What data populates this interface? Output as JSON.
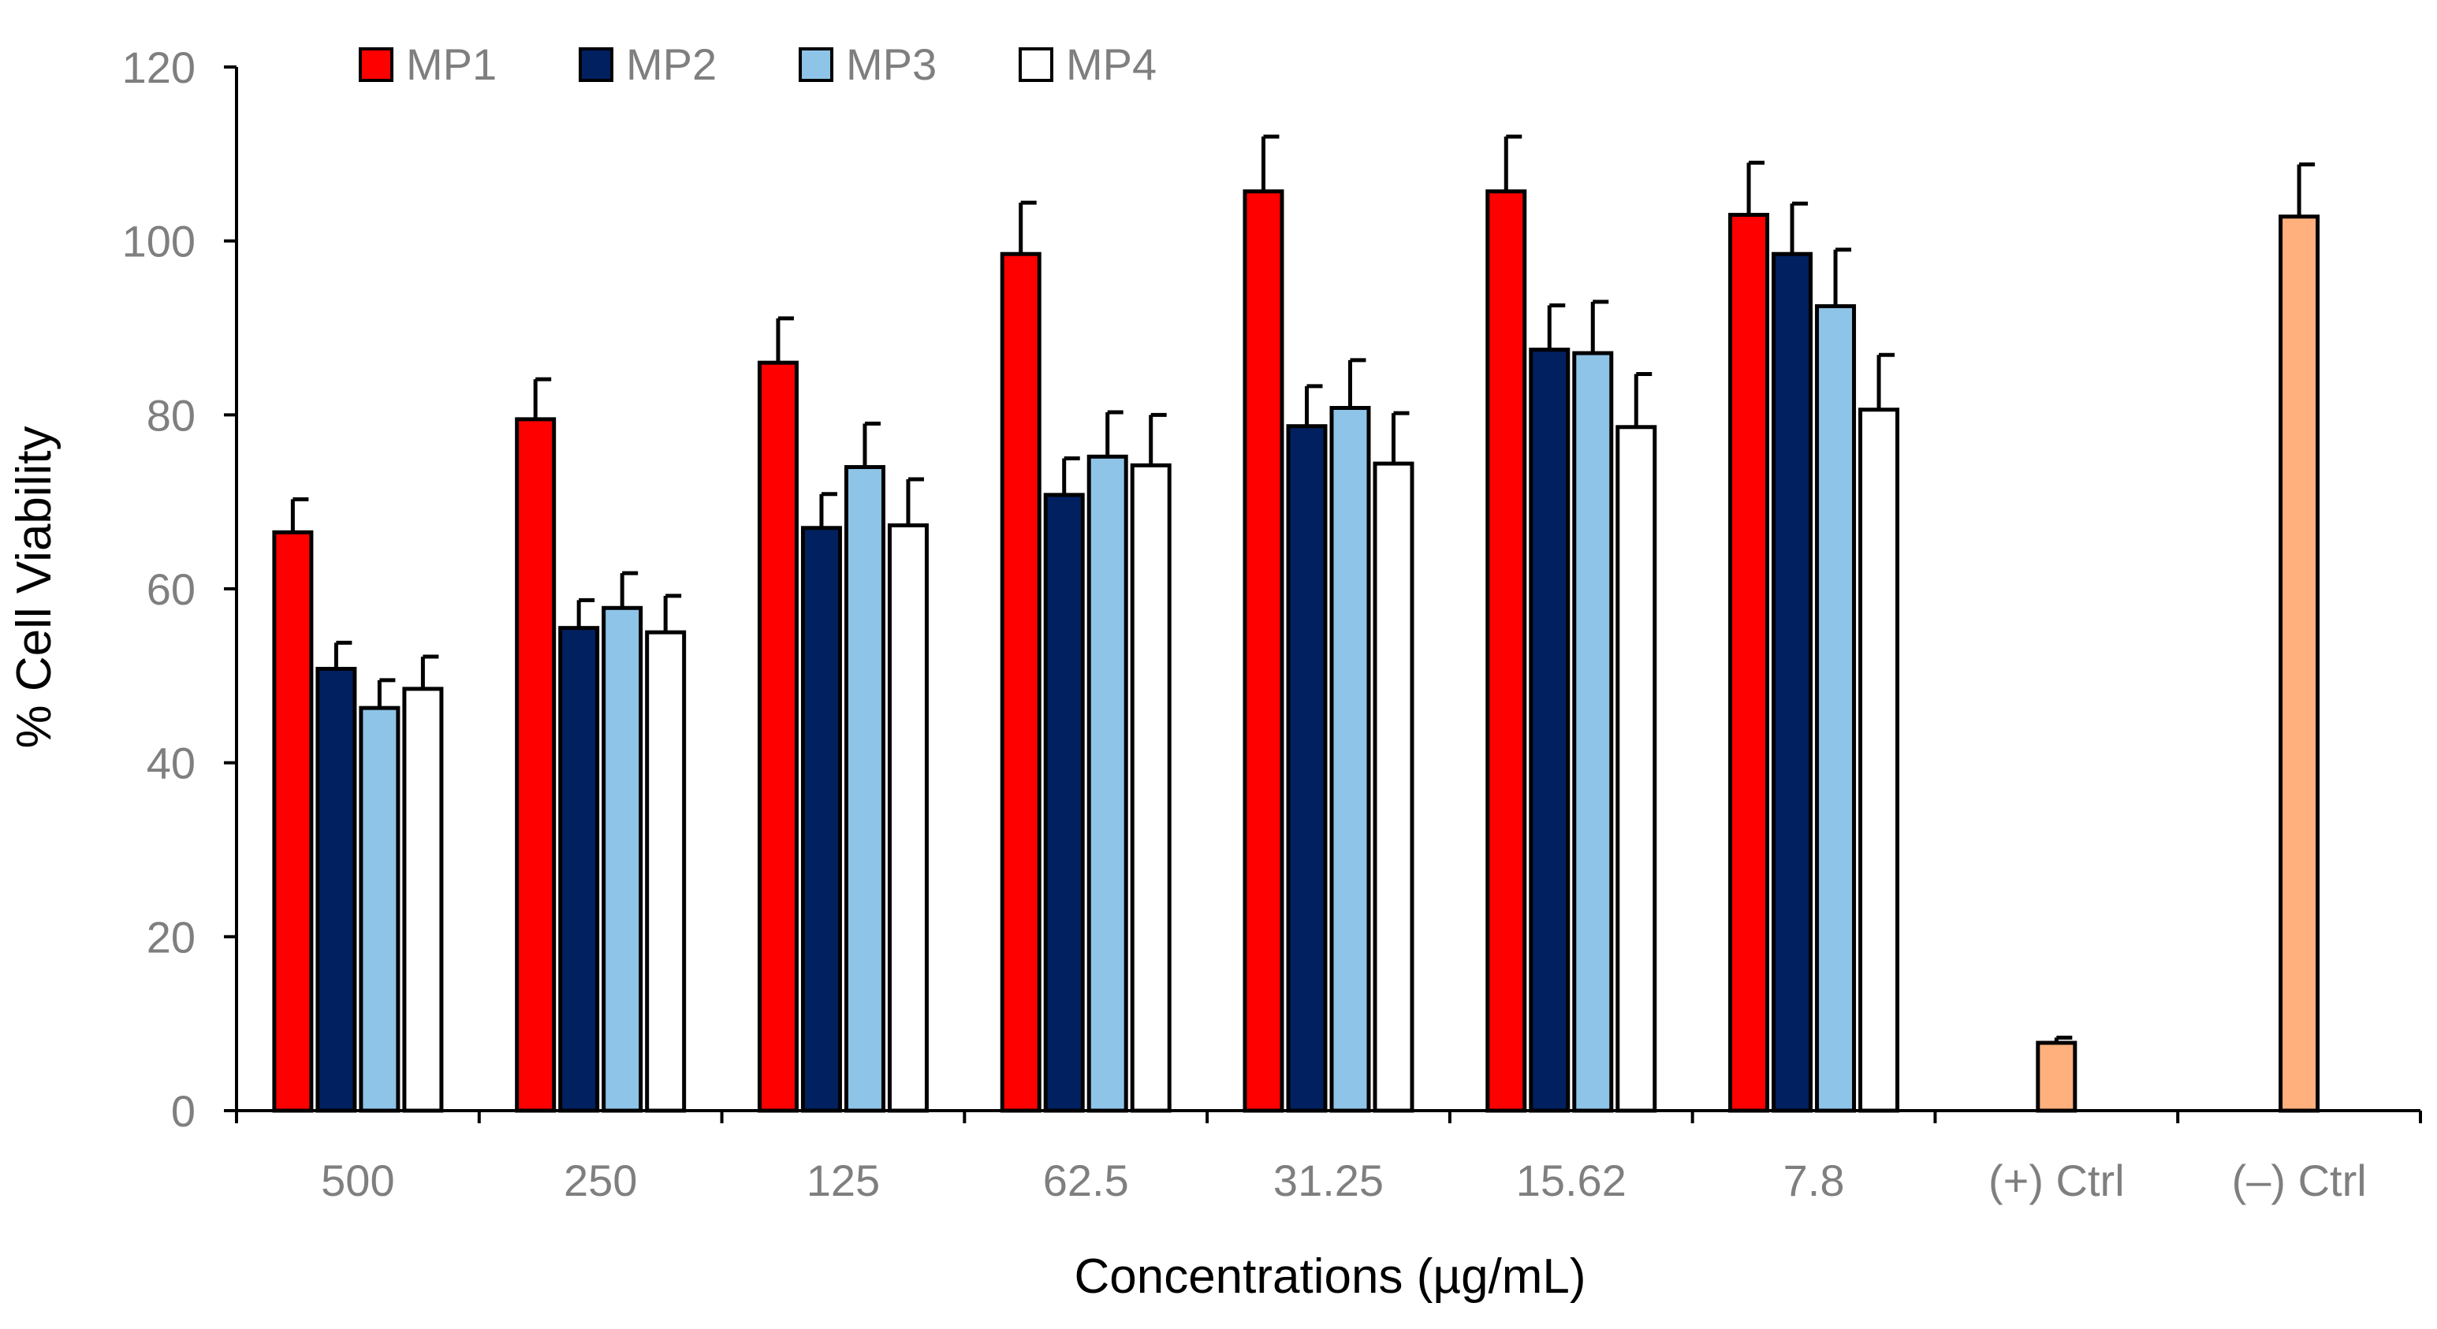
{
  "chart_data": {
    "type": "bar",
    "title": "",
    "xlabel": "Concentrations (µg/mL)",
    "ylabel": "% Cell Viability",
    "ylim": [
      0,
      120
    ],
    "yticks": [
      0,
      20,
      40,
      60,
      80,
      100,
      120
    ],
    "grid": false,
    "legend_position": "top-left",
    "categories": [
      "500",
      "250",
      "125",
      "62.5",
      "31.25",
      "15.62",
      "7.8",
      "(+) Ctrl",
      "(–) Ctrl"
    ],
    "series": [
      {
        "name": "MP1",
        "color": "#ff0000",
        "values": [
          66.5,
          79.5,
          86,
          98.5,
          105.7,
          105.7,
          103,
          null,
          null
        ],
        "errors": [
          3.8,
          4.6,
          5.1,
          5.9,
          6.3,
          6.3,
          6.0,
          null,
          null
        ]
      },
      {
        "name": "MP2",
        "color": "#002060",
        "values": [
          50.8,
          55.5,
          67,
          70.8,
          78.7,
          87.5,
          98.5,
          null,
          null
        ],
        "errors": [
          3.0,
          3.2,
          3.9,
          4.2,
          4.6,
          5.1,
          5.8,
          null,
          null
        ]
      },
      {
        "name": "MP3",
        "color": "#8ec4e8",
        "values": [
          46.3,
          57.8,
          74,
          75.2,
          80.8,
          87.1,
          92.5,
          null,
          null
        ],
        "errors": [
          3.2,
          4.0,
          5.0,
          5.1,
          5.5,
          5.9,
          6.5,
          null,
          null
        ]
      },
      {
        "name": "MP4",
        "color": "#ffffff",
        "values": [
          48.5,
          55,
          67.3,
          74.2,
          74.4,
          78.6,
          80.6,
          null,
          null
        ],
        "errors": [
          3.7,
          4.2,
          5.3,
          5.8,
          5.8,
          6.1,
          6.3,
          null,
          null
        ]
      }
    ],
    "controls": [
      {
        "category": "(+) Ctrl",
        "value": 7.8,
        "error": 0.6,
        "color": "#ffb07c"
      },
      {
        "category": "(–) Ctrl",
        "value": 102.8,
        "error": 6.0,
        "color": "#ffb07c"
      }
    ]
  }
}
